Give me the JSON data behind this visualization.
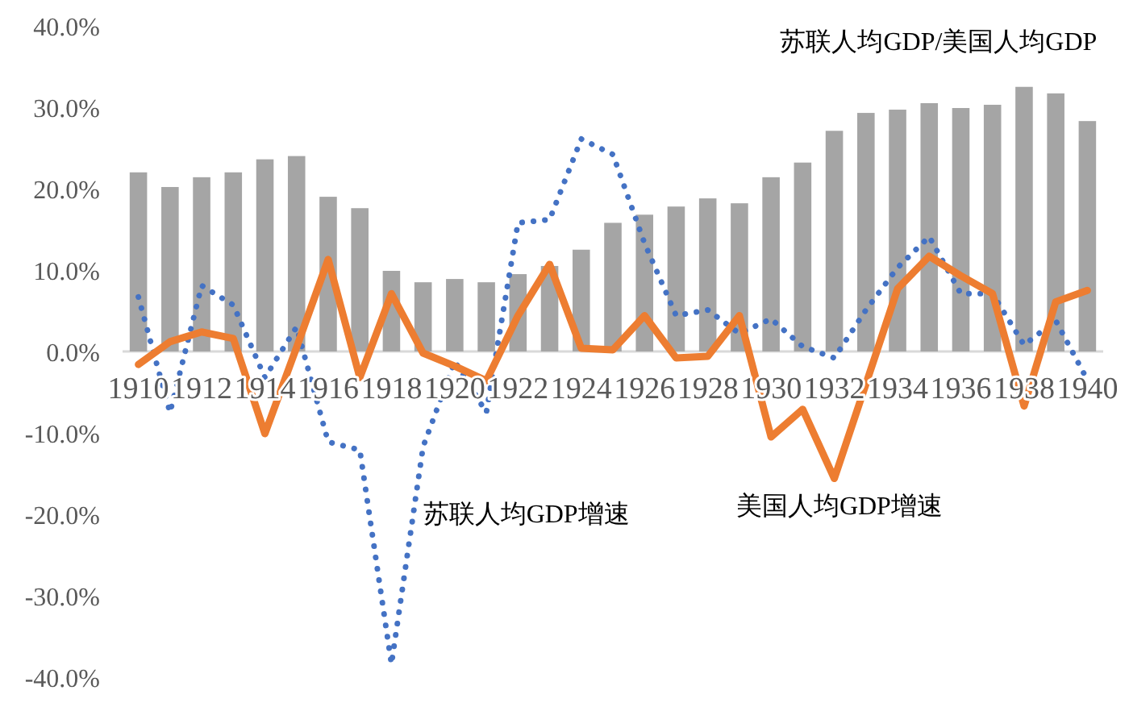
{
  "chart_data": {
    "type": "bar",
    "categories": [
      "1910",
      null,
      "1912",
      null,
      "1914",
      null,
      "1916",
      null,
      "1918",
      null,
      "1920",
      null,
      "1922",
      null,
      "1924",
      null,
      "1926",
      null,
      "1928",
      null,
      "1930",
      null,
      "1932",
      null,
      "1934",
      null,
      "1936",
      null,
      "1938",
      null,
      "1940"
    ],
    "series": [
      {
        "name": "苏联人均GDP/美国人均GDP",
        "color": "#a5a5a5",
        "values": [
          22.0,
          20.2,
          21.4,
          22.0,
          23.6,
          24.0,
          19.0,
          17.6,
          9.9,
          8.5,
          8.9,
          8.5,
          9.5,
          10.5,
          12.5,
          15.8,
          16.8,
          17.8,
          18.8,
          18.2,
          21.4,
          23.2,
          27.1,
          29.3,
          29.7,
          30.5,
          29.9,
          30.3,
          32.5,
          31.7,
          28.3
        ]
      },
      {
        "name": "苏联人均GDP增速",
        "type": "line",
        "color": "#4472c4",
        "line_style": "dotted",
        "values": [
          6.7,
          -7.5,
          8.1,
          5.7,
          -3.2,
          3.0,
          -11.1,
          -12.1,
          -38.4,
          -11.7,
          -1.2,
          -7.5,
          15.8,
          16.2,
          26.1,
          24.2,
          13.3,
          4.4,
          5.1,
          2.2,
          4.0,
          0.6,
          -0.8,
          5.1,
          10.3,
          14.1,
          7.1,
          7.1,
          0.8,
          3.8,
          -3.5
        ]
      },
      {
        "name": "美国人均GDP增速",
        "type": "line",
        "color": "#ed7d31",
        "line_style": "solid",
        "values": [
          -1.6,
          1.2,
          2.4,
          1.6,
          -10.1,
          0.5,
          11.3,
          -3.2,
          7.1,
          -0.2,
          -1.8,
          -3.6,
          4.4,
          10.7,
          0.4,
          0.2,
          4.4,
          -0.8,
          -0.6,
          4.4,
          -10.5,
          -7.1,
          -15.6,
          -4.0,
          7.7,
          11.7,
          9.3,
          7.1,
          -6.7,
          6.1,
          7.5
        ]
      }
    ],
    "ylim": [
      -40,
      40
    ],
    "yticks": [
      {
        "value": -40,
        "label": "-40.0%"
      },
      {
        "value": -30,
        "label": "-30.0%"
      },
      {
        "value": -20,
        "label": "-20.0%"
      },
      {
        "value": -10,
        "label": "-10.0%"
      },
      {
        "value": 0,
        "label": "0.0%"
      },
      {
        "value": 10,
        "label": "10.0%"
      },
      {
        "value": 20,
        "label": "20.0%"
      },
      {
        "value": 30,
        "label": "30.0%"
      },
      {
        "value": 40,
        "label": "40.0%"
      }
    ],
    "grid": false,
    "legend": false
  }
}
